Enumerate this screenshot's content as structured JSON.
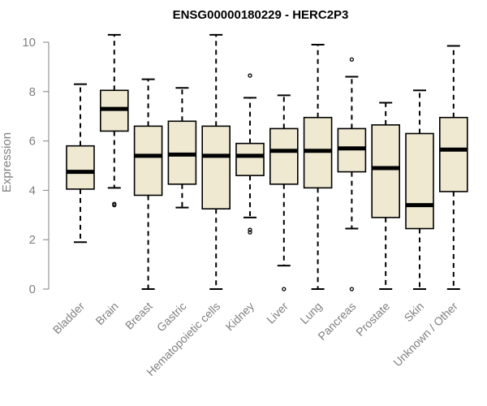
{
  "colors": {
    "box_fill": "#efe9d2",
    "box_stroke": "#000000",
    "axis": "#808080",
    "text_muted": "#808080",
    "title": "#000000"
  },
  "chart_data": {
    "type": "box",
    "title": "ENSG00000180229 - HERC2P3",
    "xlabel": "",
    "ylabel": "Expression",
    "ylim": [
      0,
      10.3
    ],
    "yticks": [
      0,
      2,
      4,
      6,
      8,
      10
    ],
    "grid": false,
    "categories": [
      "Bladder",
      "Brain",
      "Breast",
      "Gastric",
      "Hematopoietic cells",
      "Kidney",
      "Liver",
      "Lung",
      "Pancreas",
      "Prostate",
      "Skin",
      "Unknown / Other"
    ],
    "boxes": [
      {
        "category": "Bladder",
        "whisker_low": 1.9,
        "q1": 4.05,
        "median": 4.75,
        "q3": 5.8,
        "whisker_high": 8.3,
        "outliers": []
      },
      {
        "category": "Brain",
        "whisker_low": 4.1,
        "q1": 6.4,
        "median": 7.3,
        "q3": 8.05,
        "whisker_high": 10.3,
        "outliers": [
          3.45,
          3.4
        ]
      },
      {
        "category": "Breast",
        "whisker_low": 0.0,
        "q1": 3.8,
        "median": 5.4,
        "q3": 6.6,
        "whisker_high": 8.5,
        "outliers": []
      },
      {
        "category": "Gastric",
        "whisker_low": 3.3,
        "q1": 4.25,
        "median": 5.45,
        "q3": 6.8,
        "whisker_high": 8.15,
        "outliers": []
      },
      {
        "category": "Hematopoietic cells",
        "whisker_low": 0.0,
        "q1": 3.25,
        "median": 5.4,
        "q3": 6.6,
        "whisker_high": 10.3,
        "outliers": []
      },
      {
        "category": "Kidney",
        "whisker_low": 2.9,
        "q1": 4.6,
        "median": 5.4,
        "q3": 5.9,
        "whisker_high": 7.75,
        "outliers": [
          8.65,
          2.4,
          2.3
        ]
      },
      {
        "category": "Liver",
        "whisker_low": 0.95,
        "q1": 4.25,
        "median": 5.6,
        "q3": 6.5,
        "whisker_high": 7.85,
        "outliers": [
          0.0
        ]
      },
      {
        "category": "Lung",
        "whisker_low": 0.0,
        "q1": 4.1,
        "median": 5.6,
        "q3": 6.95,
        "whisker_high": 9.9,
        "outliers": []
      },
      {
        "category": "Pancreas",
        "whisker_low": 2.45,
        "q1": 4.75,
        "median": 5.7,
        "q3": 6.5,
        "whisker_high": 8.6,
        "outliers": [
          9.3,
          0.0
        ]
      },
      {
        "category": "Prostate",
        "whisker_low": 0.0,
        "q1": 2.9,
        "median": 4.9,
        "q3": 6.65,
        "whisker_high": 7.55,
        "outliers": []
      },
      {
        "category": "Skin",
        "whisker_low": 0.0,
        "q1": 2.45,
        "median": 3.4,
        "q3": 6.3,
        "whisker_high": 8.05,
        "outliers": []
      },
      {
        "category": "Unknown / Other",
        "whisker_low": 0.0,
        "q1": 3.95,
        "median": 5.65,
        "q3": 6.95,
        "whisker_high": 9.85,
        "outliers": []
      }
    ]
  }
}
